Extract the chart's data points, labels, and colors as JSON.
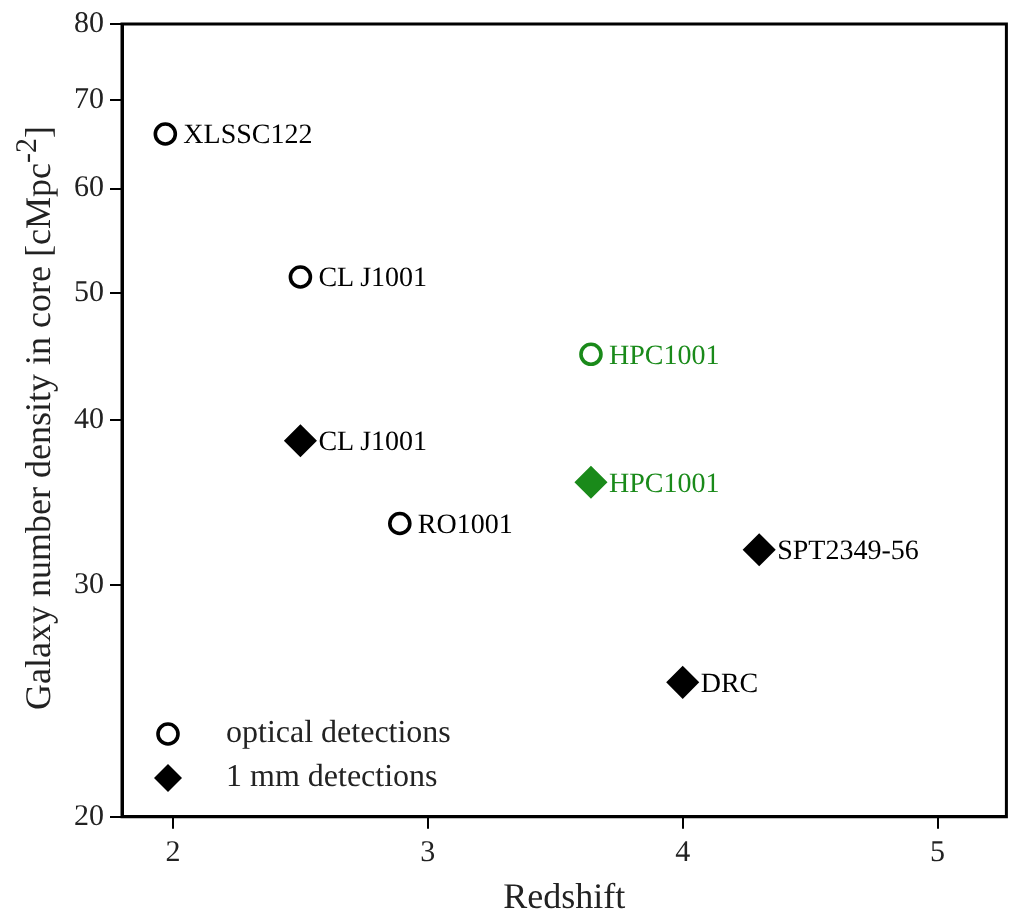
{
  "chart_data": {
    "type": "scatter",
    "xlabel": "Redshift",
    "ylabel": "Galaxy number density in core [cMpc$^{-2}$]",
    "xlim": [
      1.8,
      5.27
    ],
    "xticks": [
      2,
      3,
      4,
      5
    ],
    "ylim": [
      20,
      80
    ],
    "yticks": [
      20,
      30,
      40,
      50,
      60,
      70,
      80
    ],
    "log": "y",
    "grid": false,
    "legend": "bottom left",
    "series": [
      {
        "name": "optical detections",
        "marker": "circle",
        "color": "#000000",
        "colors": [
          "#000000",
          "#000000",
          "#1a8a1a",
          "#000000"
        ],
        "x": [
          1.97,
          2.5,
          3.64,
          2.89
        ],
        "values": [
          66,
          51.4,
          44.9,
          33.4
        ]
      },
      {
        "name": "1 mm detections",
        "marker": "diamond",
        "color": "#000000",
        "colors": [
          "#000000",
          "#1a8a1a",
          "#000000",
          "#000000"
        ],
        "x": [
          2.5,
          3.64,
          4.3,
          4.0
        ],
        "values": [
          38.6,
          35.9,
          31.9,
          25.3
        ]
      }
    ],
    "annotations": [
      {
        "text": "XLSSC122",
        "x": 1.97,
        "y": 66
      },
      {
        "text": "CL J1001",
        "x": 2.5,
        "y": 51.4
      },
      {
        "text": "HPC1001",
        "x": 3.64,
        "y": 44.9
      },
      {
        "text": "RO1001",
        "x": 2.89,
        "y": 33.4
      },
      {
        "text": "CL J1001",
        "x": 2.5,
        "y": 38.6
      },
      {
        "text": "HPC1001",
        "x": 3.64,
        "y": 35.9
      },
      {
        "text": "SPT2349-56",
        "x": 4.3,
        "y": 31.9
      },
      {
        "text": "DRC",
        "x": 4.0,
        "y": 25.3
      }
    ]
  }
}
